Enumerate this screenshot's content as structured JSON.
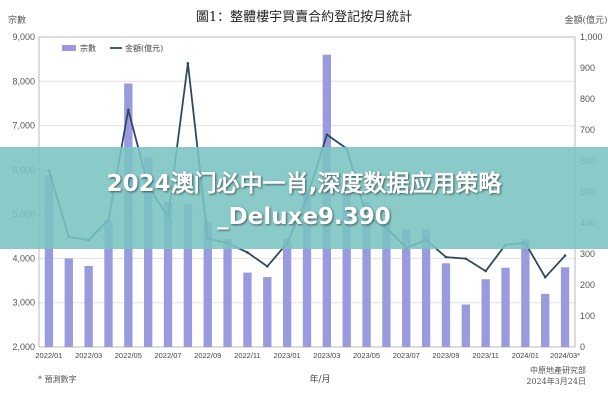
{
  "chart_data": {
    "type": "bar+line",
    "title": "圖1：整體樓宇買賣合約登記按月統計",
    "left_axis_label": "宗數",
    "right_axis_label": "金額(億元)",
    "xlabel": "年/月",
    "ylim_left": [
      2000,
      9000
    ],
    "ylim_right": [
      0,
      1000
    ],
    "left_ticks": [
      "2,000",
      "3,000",
      "4,000",
      "5,000",
      "6,000",
      "7,000",
      "8,000",
      "9,000"
    ],
    "right_ticks": [
      "0",
      "100",
      "200",
      "300",
      "400",
      "500",
      "600",
      "700",
      "800",
      "900",
      "1,000"
    ],
    "x_tick_labels": [
      "2022/01",
      "2022/03",
      "2022/05",
      "2022/07",
      "2022/09",
      "2022/11",
      "2023/01",
      "2023/03",
      "2023/05",
      "2023/07",
      "2023/09",
      "2023/11",
      "2024/01",
      "2024/03*"
    ],
    "categories": [
      "2022/01",
      "2022/02",
      "2022/03",
      "2022/04",
      "2022/05",
      "2022/06",
      "2022/07",
      "2022/08",
      "2022/09",
      "2022/10",
      "2022/11",
      "2022/12",
      "2023/01",
      "2023/02",
      "2023/03",
      "2023/04",
      "2023/05",
      "2023/06",
      "2023/07",
      "2023/08",
      "2023/09",
      "2023/10",
      "2023/11",
      "2023/12",
      "2024/01",
      "2024/02",
      "2024/03"
    ],
    "series": [
      {
        "name": "宗數",
        "kind": "bar",
        "axis": "left",
        "color": "#9a9ade",
        "values": [
          5880,
          4000,
          3830,
          4870,
          7950,
          6280,
          5280,
          5220,
          4830,
          4440,
          3680,
          3580,
          4440,
          5460,
          8600,
          5560,
          5280,
          4810,
          4650,
          4660,
          3890,
          2960,
          3530,
          3790,
          4430,
          3200,
          3800
        ]
      },
      {
        "name": "金額(億元)",
        "kind": "line",
        "axis": "right",
        "color": "#2d4a63",
        "values": [
          570,
          355,
          345,
          410,
          765,
          520,
          420,
          915,
          350,
          335,
          305,
          260,
          335,
          480,
          685,
          640,
          420,
          385,
          320,
          345,
          290,
          285,
          245,
          330,
          335,
          225,
          295
        ]
      }
    ],
    "legend_position": "top-left",
    "footnote": "* 預測數字",
    "source_line1": "中原地產研究部",
    "source_line2": "2024年3月24日",
    "grid": true
  },
  "banner": {
    "line1": "2024澳门必中一肖,深度数据应用策略",
    "line2": "_Deluxe9.390"
  },
  "colors": {
    "bar": "#9a9ade",
    "line": "#2d4a63",
    "grid": "#e2e2e2",
    "banner_bg": "#7ac4c3"
  }
}
